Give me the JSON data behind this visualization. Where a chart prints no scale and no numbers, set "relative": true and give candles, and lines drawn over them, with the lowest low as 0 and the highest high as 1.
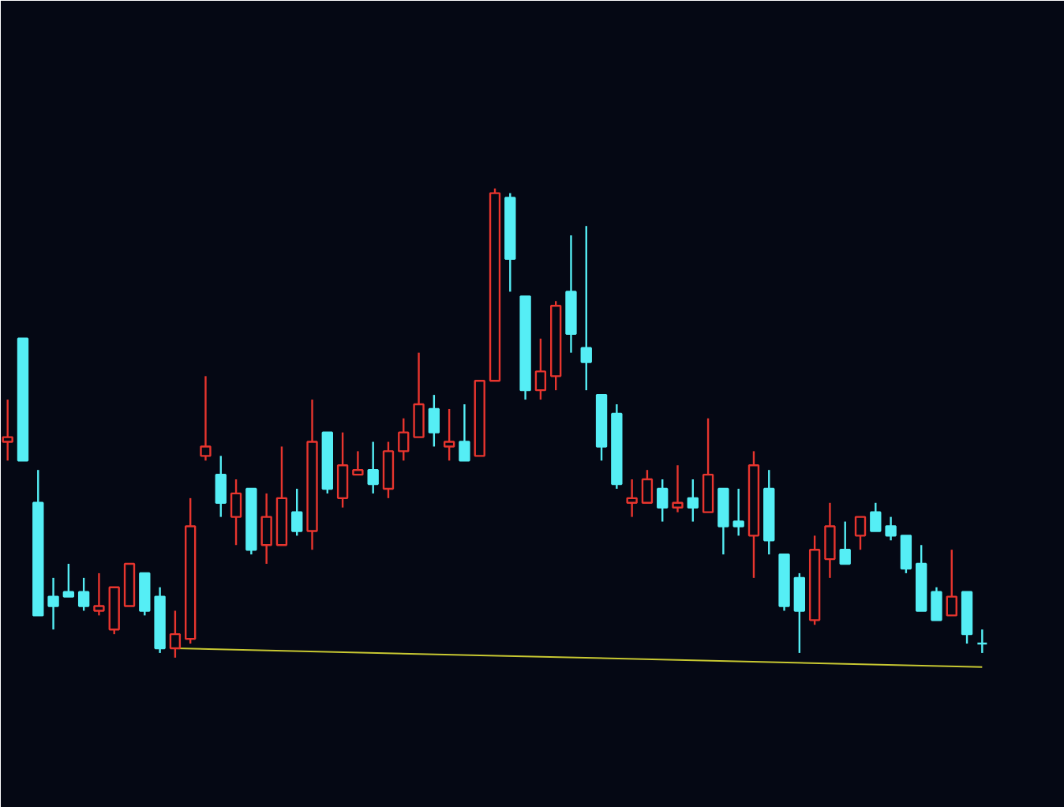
{
  "chart_data": {
    "type": "candlestick",
    "relative": true,
    "categories": [
      null,
      null,
      null,
      null,
      null,
      null,
      null,
      null,
      null,
      null,
      null,
      null,
      null,
      null,
      null,
      null,
      null,
      null,
      null,
      null,
      null,
      null,
      null,
      null,
      null,
      null,
      null,
      null,
      null,
      null,
      null,
      null,
      null,
      null,
      null,
      null,
      null,
      null,
      null,
      null,
      null,
      null,
      null,
      null,
      null,
      null,
      null,
      null,
      null,
      null,
      null,
      null,
      null,
      null,
      null,
      null,
      null,
      null,
      null,
      null,
      null,
      null,
      null,
      null,
      null
    ],
    "ohlc": [
      [
        0.46,
        0.55,
        0.42,
        0.47
      ],
      [
        0.68,
        0.68,
        0.42,
        0.42
      ],
      [
        0.33,
        0.4,
        0.09,
        0.09
      ],
      [
        0.13,
        0.17,
        0.06,
        0.11
      ],
      [
        0.14,
        0.2,
        0.13,
        0.13
      ],
      [
        0.14,
        0.17,
        0.1,
        0.11
      ],
      [
        0.1,
        0.18,
        0.09,
        0.11
      ],
      [
        0.06,
        0.15,
        0.05,
        0.15
      ],
      [
        0.11,
        0.2,
        0.11,
        0.2
      ],
      [
        0.18,
        0.18,
        0.09,
        0.1
      ],
      [
        0.13,
        0.15,
        0.01,
        0.02
      ],
      [
        0.02,
        0.1,
        0,
        0.05
      ],
      [
        0.04,
        0.34,
        0.03,
        0.28
      ],
      [
        0.43,
        0.6,
        0.42,
        0.45
      ],
      [
        0.39,
        0.43,
        0.3,
        0.33
      ],
      [
        0.3,
        0.38,
        0.24,
        0.35
      ],
      [
        0.36,
        0.36,
        0.22,
        0.23
      ],
      [
        0.24,
        0.35,
        0.2,
        0.3
      ],
      [
        0.24,
        0.45,
        0.24,
        0.34
      ],
      [
        0.31,
        0.36,
        0.26,
        0.27
      ],
      [
        0.27,
        0.55,
        0.23,
        0.46
      ],
      [
        0.48,
        0.48,
        0.35,
        0.36
      ],
      [
        0.34,
        0.48,
        0.32,
        0.41
      ],
      [
        0.39,
        0.44,
        0.39,
        0.4
      ],
      [
        0.4,
        0.46,
        0.35,
        0.37
      ],
      [
        0.36,
        0.46,
        0.34,
        0.44
      ],
      [
        0.44,
        0.51,
        0.42,
        0.48
      ],
      [
        0.47,
        0.65,
        0.47,
        0.54
      ],
      [
        0.53,
        0.56,
        0.45,
        0.48
      ],
      [
        0.45,
        0.53,
        0.42,
        0.46
      ],
      [
        0.46,
        0.54,
        0.42,
        0.42
      ],
      [
        0.43,
        0.59,
        0.43,
        0.59
      ],
      [
        0.59,
        1,
        0.59,
        0.99
      ],
      [
        0.98,
        0.99,
        0.78,
        0.85
      ],
      [
        0.77,
        0.77,
        0.55,
        0.57
      ],
      [
        0.57,
        0.68,
        0.55,
        0.61
      ],
      [
        0.6,
        0.76,
        0.57,
        0.75
      ],
      [
        0.78,
        0.9,
        0.65,
        0.69
      ],
      [
        0.66,
        0.92,
        0.57,
        0.63
      ],
      [
        0.56,
        0.56,
        0.42,
        0.45
      ],
      [
        0.52,
        0.54,
        0.36,
        0.37
      ],
      [
        0.33,
        0.38,
        0.3,
        0.34
      ],
      [
        0.33,
        0.4,
        0.33,
        0.38
      ],
      [
        0.36,
        0.38,
        0.29,
        0.32
      ],
      [
        0.32,
        0.41,
        0.31,
        0.33
      ],
      [
        0.34,
        0.38,
        0.29,
        0.32
      ],
      [
        0.31,
        0.51,
        0.31,
        0.39
      ],
      [
        0.36,
        0.36,
        0.22,
        0.28
      ],
      [
        0.29,
        0.36,
        0.26,
        0.28
      ],
      [
        0.26,
        0.44,
        0.17,
        0.41
      ],
      [
        0.36,
        0.4,
        0.22,
        0.25
      ],
      [
        0.22,
        0.22,
        0.1,
        0.11
      ],
      [
        0.17,
        0.18,
        0.01,
        0.1
      ],
      [
        0.08,
        0.26,
        0.07,
        0.23
      ],
      [
        0.21,
        0.33,
        0.17,
        0.28
      ],
      [
        0.23,
        0.29,
        0.2,
        0.2
      ],
      [
        0.26,
        0.3,
        0.23,
        0.3
      ],
      [
        0.31,
        0.33,
        0.27,
        0.27
      ],
      [
        0.28,
        0.3,
        0.25,
        0.26
      ],
      [
        0.26,
        0.26,
        0.18,
        0.19
      ],
      [
        0.2,
        0.24,
        0.1,
        0.1
      ],
      [
        0.14,
        0.15,
        0.08,
        0.08
      ],
      [
        0.09,
        0.23,
        0.09,
        0.13
      ],
      [
        0.14,
        0.14,
        0.03,
        0.05
      ],
      [
        0.03,
        0.06,
        0.01,
        0.03
      ]
    ],
    "colors": [
      "#e8352e",
      "#55eef5",
      "#55eef5",
      "#55eef5",
      "#55eef5",
      "#55eef5",
      "#e8352e",
      "#e8352e",
      "#e8352e",
      "#55eef5",
      "#55eef5",
      "#e8352e",
      "#e8352e",
      "#e8352e",
      "#55eef5",
      "#e8352e",
      "#55eef5",
      "#e8352e",
      "#e8352e",
      "#55eef5",
      "#e8352e",
      "#55eef5",
      "#e8352e",
      "#e8352e",
      "#55eef5",
      "#e8352e",
      "#e8352e",
      "#e8352e",
      "#55eef5",
      "#e8352e",
      "#55eef5",
      "#e8352e",
      "#e8352e",
      "#55eef5",
      "#55eef5",
      "#e8352e",
      "#e8352e",
      "#55eef5",
      "#55eef5",
      "#55eef5",
      "#55eef5",
      "#e8352e",
      "#e8352e",
      "#55eef5",
      "#e8352e",
      "#55eef5",
      "#e8352e",
      "#55eef5",
      "#55eef5",
      "#e8352e",
      "#55eef5",
      "#55eef5",
      "#55eef5",
      "#e8352e",
      "#e8352e",
      "#55eef5",
      "#e8352e",
      "#55eef5",
      "#55eef5",
      "#55eef5",
      "#55eef5",
      "#55eef5",
      "#e8352e",
      "#55eef5",
      "#55eef5"
    ],
    "series": [
      {
        "type": "line",
        "color": "#c8c832",
        "values": [
          null,
          null,
          null,
          null,
          null,
          null,
          null,
          null,
          null,
          null,
          null,
          0.02,
          null,
          null,
          null,
          null,
          null,
          null,
          null,
          null,
          null,
          null,
          null,
          null,
          null,
          null,
          null,
          null,
          null,
          null,
          null,
          null,
          null,
          null,
          null,
          null,
          null,
          null,
          null,
          null,
          null,
          null,
          null,
          null,
          null,
          null,
          null,
          null,
          null,
          null,
          null,
          null,
          null,
          null,
          null,
          null,
          null,
          null,
          null,
          null,
          null,
          null,
          null,
          null,
          -0.02
        ]
      }
    ]
  }
}
